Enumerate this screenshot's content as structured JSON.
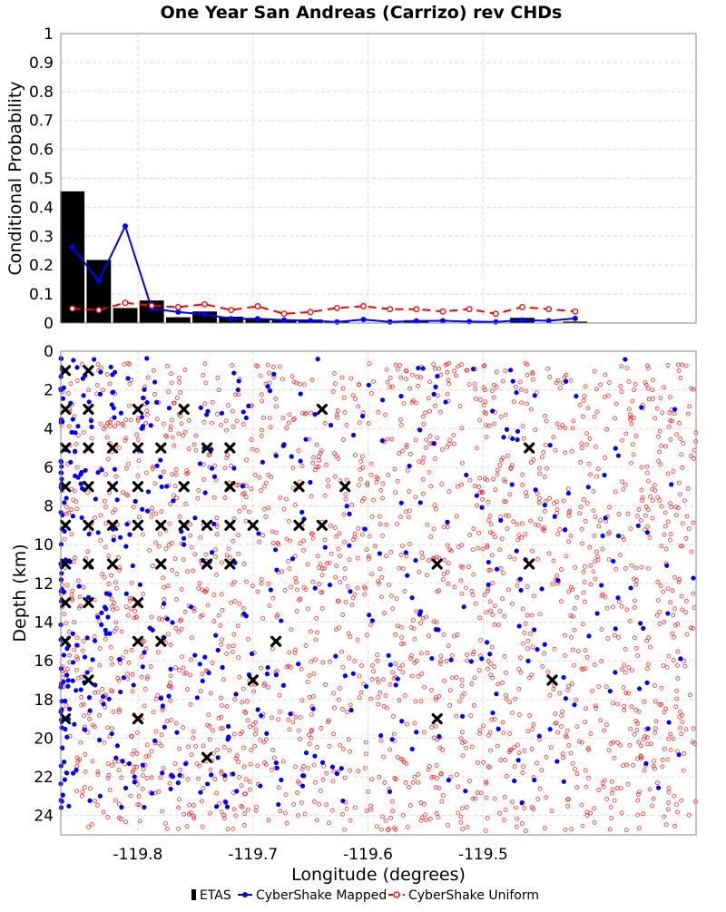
{
  "title": "One Year San Andreas (Carrizo) rev CHDs",
  "chart_data": [
    {
      "type": "bar",
      "panel": "top",
      "ylabel": "Conditional Probability",
      "xlim": [
        -119.867,
        -119.315
      ],
      "ylim": [
        0,
        1
      ],
      "yticks": [
        "0",
        "0.1",
        "0.2",
        "0.3",
        "0.4",
        "0.5",
        "0.6",
        "0.7",
        "0.8",
        "0.9",
        "1"
      ],
      "grid": true,
      "x": [
        -119.857,
        -119.834,
        -119.811,
        -119.788,
        -119.765,
        -119.742,
        -119.719,
        -119.696,
        -119.673,
        -119.65,
        -119.627,
        -119.604,
        -119.581,
        -119.558,
        -119.535,
        -119.512,
        -119.489,
        -119.466,
        -119.443,
        -119.42
      ],
      "series": [
        {
          "name": "ETAS",
          "style": "bars",
          "color": "#000000",
          "values": [
            0.455,
            0.218,
            0.052,
            0.078,
            0.02,
            0.04,
            0.022,
            0.015,
            0.013,
            0.012,
            0.005,
            0.0,
            0.0,
            0.01,
            0.0,
            0.0,
            0.0,
            0.018,
            0.0,
            0.005
          ]
        },
        {
          "name": "CyberShake Mapped",
          "style": "line-solid",
          "color": "#0000ff",
          "values": [
            0.262,
            0.145,
            0.335,
            0.05,
            0.038,
            0.03,
            0.015,
            0.015,
            0.01,
            0.008,
            0.004,
            0.012,
            0.004,
            0.007,
            0.008,
            0.005,
            0.004,
            0.01,
            0.008,
            0.016
          ]
        },
        {
          "name": "CyberShake Uniform",
          "style": "line-dashed",
          "color": "#ff0000",
          "values": [
            0.05,
            0.045,
            0.07,
            0.06,
            0.055,
            0.065,
            0.045,
            0.058,
            0.032,
            0.038,
            0.052,
            0.058,
            0.048,
            0.048,
            0.04,
            0.048,
            0.032,
            0.055,
            0.048,
            0.04
          ]
        }
      ]
    },
    {
      "type": "scatter",
      "panel": "bottom",
      "xlabel": "Longitude (degrees)",
      "ylabel": "Depth (km)",
      "xlim": [
        -119.867,
        -119.315
      ],
      "ylim": [
        0,
        25
      ],
      "y_inverted": true,
      "xticks": [
        {
          "value": -119.8,
          "label": "-119.8"
        },
        {
          "value": -119.7,
          "label": "-119.7"
        },
        {
          "value": -119.6,
          "label": "-119.6"
        },
        {
          "value": -119.5,
          "label": "-119.5"
        }
      ],
      "yticks": [
        {
          "value": 0,
          "label": "0"
        },
        {
          "value": 2,
          "label": "2"
        },
        {
          "value": 4,
          "label": "4"
        },
        {
          "value": 6,
          "label": "6"
        },
        {
          "value": 8,
          "label": "8"
        },
        {
          "value": 10,
          "label": "10"
        },
        {
          "value": 12,
          "label": "12"
        },
        {
          "value": 14,
          "label": "14"
        },
        {
          "value": 16,
          "label": "16"
        },
        {
          "value": 18,
          "label": "18"
        },
        {
          "value": 20,
          "label": "20"
        },
        {
          "value": 22,
          "label": "22"
        },
        {
          "value": 24,
          "label": "24"
        }
      ],
      "grid": true,
      "series": [
        {
          "name": "ETAS",
          "marker": "x",
          "color": "#000000",
          "points": [
            [
              -119.863,
              1
            ],
            [
              -119.843,
              1
            ],
            [
              -119.863,
              3
            ],
            [
              -119.843,
              3
            ],
            [
              -119.8,
              3
            ],
            [
              -119.76,
              3
            ],
            [
              -119.64,
              3
            ],
            [
              -119.863,
              5
            ],
            [
              -119.843,
              5
            ],
            [
              -119.822,
              5
            ],
            [
              -119.8,
              5
            ],
            [
              -119.78,
              5
            ],
            [
              -119.74,
              5
            ],
            [
              -119.72,
              5
            ],
            [
              -119.46,
              5
            ],
            [
              -119.863,
              7
            ],
            [
              -119.843,
              7
            ],
            [
              -119.822,
              7
            ],
            [
              -119.8,
              7
            ],
            [
              -119.76,
              7
            ],
            [
              -119.72,
              7
            ],
            [
              -119.66,
              7
            ],
            [
              -119.62,
              7
            ],
            [
              -119.863,
              9
            ],
            [
              -119.843,
              9
            ],
            [
              -119.822,
              9
            ],
            [
              -119.8,
              9
            ],
            [
              -119.78,
              9
            ],
            [
              -119.76,
              9
            ],
            [
              -119.74,
              9
            ],
            [
              -119.72,
              9
            ],
            [
              -119.7,
              9
            ],
            [
              -119.66,
              9
            ],
            [
              -119.64,
              9
            ],
            [
              -119.863,
              11
            ],
            [
              -119.843,
              11
            ],
            [
              -119.822,
              11
            ],
            [
              -119.78,
              11
            ],
            [
              -119.74,
              11
            ],
            [
              -119.72,
              11
            ],
            [
              -119.54,
              11
            ],
            [
              -119.46,
              11
            ],
            [
              -119.863,
              13
            ],
            [
              -119.843,
              13
            ],
            [
              -119.8,
              13
            ],
            [
              -119.863,
              15
            ],
            [
              -119.8,
              15
            ],
            [
              -119.78,
              15
            ],
            [
              -119.68,
              15
            ],
            [
              -119.843,
              17
            ],
            [
              -119.7,
              17
            ],
            [
              -119.44,
              17
            ],
            [
              -119.863,
              19
            ],
            [
              -119.8,
              19
            ],
            [
              -119.54,
              19
            ],
            [
              -119.74,
              21
            ]
          ]
        },
        {
          "name": "CyberShake Mapped",
          "marker": "dot",
          "color": "#0000ff",
          "density": "high toward the west end (x < -119.75), sparse to the east"
        },
        {
          "name": "CyberShake Uniform",
          "marker": "open-circle",
          "color": "#ff0000",
          "density": "dense across the full longitude and depth range"
        }
      ]
    }
  ],
  "legend": {
    "placement": "bottom-center",
    "items": [
      {
        "name": "ETAS",
        "color": "#000000"
      },
      {
        "name": "CyberShake Mapped",
        "color": "#0000ff"
      },
      {
        "name": "CyberShake Uniform",
        "color": "#ff0000"
      }
    ]
  }
}
